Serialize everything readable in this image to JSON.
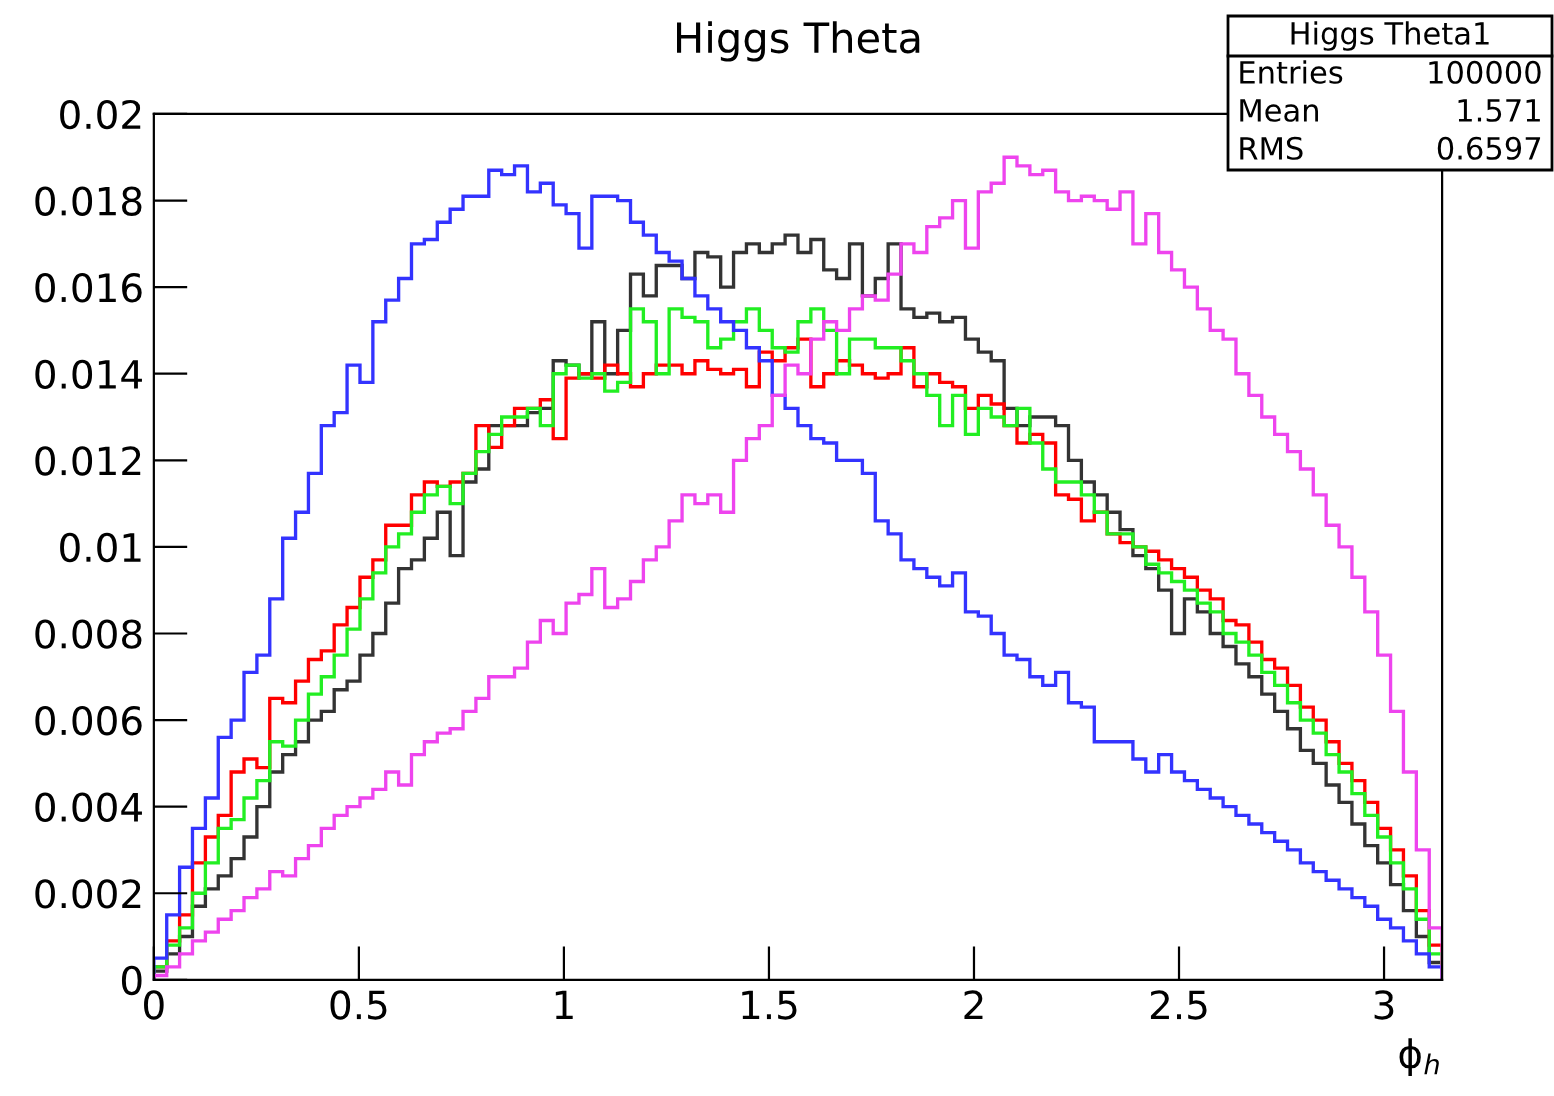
{
  "chart_data": {
    "type": "histogram",
    "title": "Higgs Theta",
    "xlabel": "ϕ$_{h}$",
    "annotations": [
      "Higgs Theta1",
      "Entries",
      "100000",
      "Mean",
      "1.571",
      "RMS",
      "0.6597"
    ],
    "bins": [
      0,
      0.0314,
      0.0628,
      0.0942,
      0.1257,
      0.1571,
      0.1885,
      0.2199,
      0.2513,
      0.2827,
      0.3142,
      0.3456,
      0.377,
      0.4084,
      0.4398,
      0.4712,
      0.5027,
      0.5341,
      0.5655,
      0.5969,
      0.6283,
      0.6597,
      0.6912,
      0.7226,
      0.754,
      0.7854,
      0.8168,
      0.8482,
      0.8796,
      0.9111,
      0.9425,
      0.9739,
      1.0053,
      1.0367,
      1.0681,
      1.0996,
      1.131,
      1.1624,
      1.1938,
      1.2252,
      1.2566,
      1.2881,
      1.3195,
      1.3509,
      1.3823,
      1.4137,
      1.4451,
      1.4765,
      1.508,
      1.5394,
      1.5708,
      1.6022,
      1.6336,
      1.665,
      1.6965,
      1.7279,
      1.7593,
      1.7907,
      1.8221,
      1.8535,
      1.885,
      1.9164,
      1.9478,
      1.9792,
      2.0106,
      2.042,
      2.0735,
      2.1049,
      2.1363,
      2.1677,
      2.1991,
      2.2305,
      2.2619,
      2.2934,
      2.3248,
      2.3562,
      2.3876,
      2.419,
      2.4504,
      2.4819,
      2.5133,
      2.5447,
      2.5761,
      2.6075,
      2.6389,
      2.6704,
      2.7018,
      2.7332,
      2.7646,
      2.796,
      2.8274,
      2.8588,
      2.8903,
      2.9217,
      2.9531,
      2.9845,
      3.0159,
      3.0473,
      3.0788,
      3.1102,
      3.1416
    ],
    "series": [
      {
        "color": "#333333",
        "values": [
          0.0002,
          0.0006,
          0.001,
          0.0017,
          0.0021,
          0.0024,
          0.0028,
          0.0033,
          0.004,
          0.0048,
          0.0052,
          0.0055,
          0.006,
          0.0062,
          0.0067,
          0.0069,
          0.0075,
          0.008,
          0.0087,
          0.0095,
          0.0097,
          0.0102,
          0.0108,
          0.0098,
          0.0115,
          0.0118,
          0.0128,
          0.0128,
          0.0128,
          0.0131,
          0.0132,
          0.0143,
          0.0142,
          0.014,
          0.0152,
          0.014,
          0.015,
          0.0163,
          0.0158,
          0.0165,
          0.0165,
          0.0162,
          0.0168,
          0.0167,
          0.016,
          0.0168,
          0.017,
          0.0168,
          0.017,
          0.0172,
          0.0168,
          0.0171,
          0.0164,
          0.0162,
          0.017,
          0.0158,
          0.0162,
          0.017,
          0.0155,
          0.0153,
          0.0154,
          0.0152,
          0.0153,
          0.0148,
          0.0145,
          0.0143,
          0.0132,
          0.0128,
          0.013,
          0.013,
          0.0128,
          0.012,
          0.0115,
          0.0112,
          0.0108,
          0.0104,
          0.0098,
          0.0095,
          0.009,
          0.008,
          0.0088,
          0.0085,
          0.008,
          0.0077,
          0.0073,
          0.007,
          0.0066,
          0.0062,
          0.0058,
          0.0053,
          0.005,
          0.0045,
          0.0041,
          0.0036,
          0.0031,
          0.0027,
          0.0022,
          0.0016,
          0.001,
          0.0004
        ]
      },
      {
        "color": "#ff0000",
        "values": [
          0.0003,
          0.0009,
          0.0015,
          0.0027,
          0.0033,
          0.0038,
          0.0048,
          0.0051,
          0.0049,
          0.0065,
          0.0064,
          0.0069,
          0.0074,
          0.0076,
          0.0082,
          0.0086,
          0.0093,
          0.0097,
          0.0105,
          0.0105,
          0.0112,
          0.0115,
          0.0114,
          0.0115,
          0.0117,
          0.0128,
          0.0123,
          0.0128,
          0.0132,
          0.0132,
          0.0134,
          0.0125,
          0.0139,
          0.014,
          0.0139,
          0.0142,
          0.014,
          0.0137,
          0.014,
          0.0142,
          0.0142,
          0.014,
          0.0143,
          0.0141,
          0.014,
          0.0141,
          0.0137,
          0.0145,
          0.0143,
          0.0146,
          0.0148,
          0.0137,
          0.014,
          0.0143,
          0.0142,
          0.014,
          0.0139,
          0.014,
          0.0146,
          0.0137,
          0.014,
          0.0138,
          0.0137,
          0.0132,
          0.0135,
          0.0133,
          0.0128,
          0.0124,
          0.0126,
          0.0124,
          0.0112,
          0.0111,
          0.0106,
          0.0108,
          0.0103,
          0.0101,
          0.01,
          0.0099,
          0.0097,
          0.0095,
          0.0093,
          0.009,
          0.0088,
          0.0083,
          0.0082,
          0.0078,
          0.0074,
          0.0072,
          0.0068,
          0.0063,
          0.006,
          0.0055,
          0.005,
          0.0046,
          0.0041,
          0.0035,
          0.003,
          0.0024,
          0.0016,
          0.0008
        ]
      },
      {
        "color": "#22ee22",
        "values": [
          0.0003,
          0.0008,
          0.0012,
          0.002,
          0.0027,
          0.0035,
          0.0037,
          0.0042,
          0.0046,
          0.0055,
          0.0054,
          0.006,
          0.0066,
          0.007,
          0.0075,
          0.0081,
          0.0088,
          0.0094,
          0.01,
          0.0103,
          0.0108,
          0.0112,
          0.0114,
          0.011,
          0.0117,
          0.0122,
          0.0126,
          0.013,
          0.013,
          0.0132,
          0.0128,
          0.014,
          0.0142,
          0.0139,
          0.014,
          0.0136,
          0.0138,
          0.0155,
          0.0152,
          0.014,
          0.0155,
          0.0153,
          0.0152,
          0.0146,
          0.0148,
          0.0152,
          0.0155,
          0.015,
          0.0146,
          0.0145,
          0.0152,
          0.0155,
          0.015,
          0.014,
          0.0148,
          0.0148,
          0.0146,
          0.0146,
          0.0143,
          0.014,
          0.0135,
          0.0128,
          0.0135,
          0.0126,
          0.0132,
          0.013,
          0.0128,
          0.0132,
          0.0124,
          0.0118,
          0.0115,
          0.0115,
          0.0112,
          0.0108,
          0.0103,
          0.0103,
          0.01,
          0.0096,
          0.0094,
          0.0092,
          0.009,
          0.0087,
          0.0085,
          0.008,
          0.0078,
          0.0075,
          0.0071,
          0.0068,
          0.0064,
          0.006,
          0.0057,
          0.0052,
          0.0048,
          0.0043,
          0.0038,
          0.0033,
          0.0027,
          0.0021,
          0.0014,
          0.0006
        ]
      },
      {
        "color": "#3333ff",
        "values": [
          0.0005,
          0.0015,
          0.0026,
          0.0035,
          0.0042,
          0.0056,
          0.006,
          0.0071,
          0.0075,
          0.0088,
          0.0102,
          0.0108,
          0.0117,
          0.0128,
          0.0131,
          0.0142,
          0.0138,
          0.0152,
          0.0157,
          0.0162,
          0.017,
          0.0171,
          0.0175,
          0.0178,
          0.0181,
          0.0181,
          0.0187,
          0.0186,
          0.0188,
          0.0182,
          0.0184,
          0.0179,
          0.0177,
          0.0169,
          0.0181,
          0.0181,
          0.018,
          0.0175,
          0.0172,
          0.0168,
          0.0166,
          0.0162,
          0.0158,
          0.0155,
          0.0152,
          0.015,
          0.0146,
          0.0143,
          0.0135,
          0.0132,
          0.0128,
          0.0125,
          0.0124,
          0.012,
          0.012,
          0.0117,
          0.0106,
          0.0103,
          0.0097,
          0.0095,
          0.0093,
          0.0091,
          0.0094,
          0.0085,
          0.0084,
          0.008,
          0.0075,
          0.0074,
          0.007,
          0.0068,
          0.0071,
          0.0064,
          0.0063,
          0.0055,
          0.0055,
          0.0055,
          0.0051,
          0.0048,
          0.0052,
          0.0048,
          0.0046,
          0.0044,
          0.0042,
          0.004,
          0.0038,
          0.0036,
          0.0034,
          0.0032,
          0.003,
          0.0027,
          0.0025,
          0.0023,
          0.0021,
          0.0019,
          0.0017,
          0.0014,
          0.0012,
          0.0009,
          0.0006,
          0.0003
        ]
      },
      {
        "color": "#ee44ee",
        "values": [
          0.0001,
          0.0003,
          0.0006,
          0.0009,
          0.0011,
          0.0014,
          0.0016,
          0.0019,
          0.0021,
          0.0025,
          0.0024,
          0.0028,
          0.0031,
          0.0035,
          0.0038,
          0.004,
          0.0042,
          0.0044,
          0.0048,
          0.0045,
          0.0052,
          0.0055,
          0.0057,
          0.0058,
          0.0062,
          0.0065,
          0.007,
          0.007,
          0.0072,
          0.0078,
          0.0083,
          0.008,
          0.0087,
          0.0089,
          0.0095,
          0.0086,
          0.0088,
          0.0092,
          0.0097,
          0.01,
          0.0106,
          0.0112,
          0.011,
          0.0112,
          0.0108,
          0.012,
          0.0125,
          0.0128,
          0.0135,
          0.0142,
          0.014,
          0.0148,
          0.0152,
          0.015,
          0.0155,
          0.0158,
          0.0157,
          0.0163,
          0.017,
          0.0168,
          0.0174,
          0.0176,
          0.018,
          0.0169,
          0.0182,
          0.0184,
          0.019,
          0.0188,
          0.0186,
          0.0187,
          0.0182,
          0.018,
          0.0181,
          0.018,
          0.0178,
          0.0182,
          0.017,
          0.0177,
          0.0168,
          0.0164,
          0.016,
          0.0155,
          0.015,
          0.0148,
          0.014,
          0.0135,
          0.013,
          0.0126,
          0.0122,
          0.0118,
          0.0112,
          0.0105,
          0.01,
          0.0093,
          0.0085,
          0.0075,
          0.0062,
          0.0048,
          0.003,
          0.0012
        ]
      }
    ],
    "xlim": [
      0,
      3.1416
    ],
    "ylim": [
      0,
      0.02
    ],
    "xticks": [
      0,
      0.5,
      1,
      1.5,
      2,
      2.5,
      3
    ],
    "yticks": [
      0,
      0.002,
      0.004,
      0.006,
      0.008,
      0.01,
      0.012,
      0.014,
      0.016,
      0.018,
      0.02
    ]
  }
}
